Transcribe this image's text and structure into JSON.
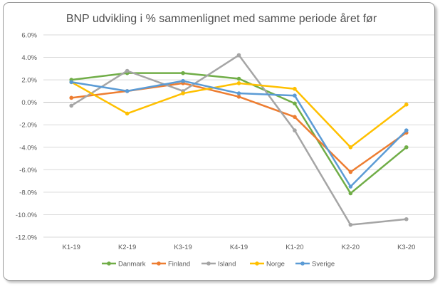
{
  "chart_data": {
    "type": "line",
    "title": "BNP udvikling i % sammenlignet med samme periode året før",
    "xlabel": "",
    "ylabel": "",
    "categories": [
      "K1-19",
      "K2-19",
      "K3-19",
      "K4-19",
      "K1-20",
      "K2-20",
      "K3-20"
    ],
    "ylim": [
      -12,
      6
    ],
    "ytick_step": 2,
    "ytick_labels": [
      "6.0%",
      "4.0%",
      "2.0%",
      "0.0%",
      "-2.0%",
      "-4.0%",
      "-6.0%",
      "-8.0%",
      "-10.0%",
      "-12.0%"
    ],
    "grid": "horizontal",
    "legend_position": "bottom",
    "series": [
      {
        "name": "Danmark",
        "color": "#70ad47",
        "values": [
          2.0,
          2.6,
          2.6,
          2.1,
          -0.1,
          -8.1,
          -4.0
        ]
      },
      {
        "name": "Finland",
        "color": "#ed7d31",
        "values": [
          0.4,
          1.0,
          1.7,
          0.5,
          -1.3,
          -6.2,
          -2.7
        ]
      },
      {
        "name": "Island",
        "color": "#a5a5a5",
        "values": [
          -0.3,
          2.8,
          1.0,
          4.2,
          -2.5,
          -10.9,
          -10.4
        ]
      },
      {
        "name": "Norge",
        "color": "#ffc000",
        "values": [
          1.8,
          -1.0,
          0.8,
          1.7,
          1.2,
          -4.0,
          -0.2
        ]
      },
      {
        "name": "Sverige",
        "color": "#5b9bd5",
        "values": [
          1.8,
          1.0,
          1.9,
          0.8,
          0.6,
          -7.5,
          -2.5
        ]
      }
    ]
  }
}
